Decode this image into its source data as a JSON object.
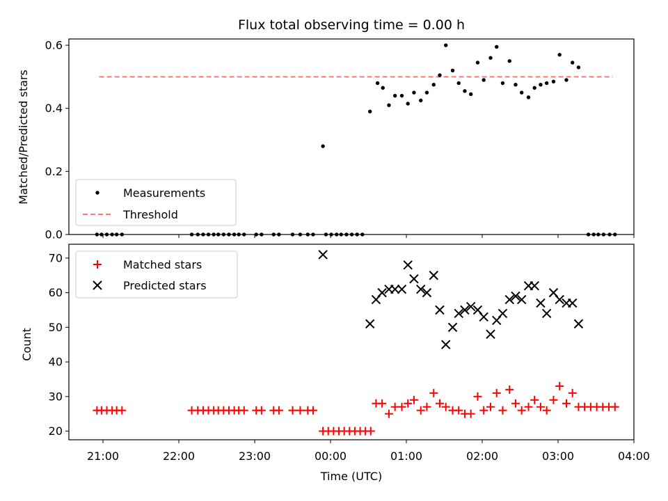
{
  "chart_data": [
    {
      "type": "scatter",
      "title": "Flux total observing time = 0.00 h",
      "xlabel": "",
      "ylabel": "Matched/Predicted stars",
      "ylim": [
        0.0,
        0.62
      ],
      "yticks": [
        "0.0",
        "0.2",
        "0.4",
        "0.6"
      ],
      "ytick_values": [
        0.0,
        0.2,
        0.4,
        0.6
      ],
      "legend_placement": "lower-left",
      "threshold": {
        "name": "Threshold",
        "value": 0.5,
        "color": "#ff7777",
        "style": "dashed"
      },
      "series": [
        {
          "name": "Measurements",
          "color": "#000000",
          "points": [
            [
              -0.08,
              0
            ],
            [
              -0.02,
              0
            ],
            [
              0.05,
              0
            ],
            [
              0.12,
              0
            ],
            [
              0.18,
              0
            ],
            [
              0.25,
              0
            ],
            [
              1.17,
              0
            ],
            [
              1.25,
              0
            ],
            [
              1.32,
              0
            ],
            [
              1.39,
              0
            ],
            [
              1.46,
              0
            ],
            [
              1.52,
              0
            ],
            [
              1.59,
              0
            ],
            [
              1.66,
              0
            ],
            [
              1.73,
              0
            ],
            [
              1.79,
              0
            ],
            [
              1.86,
              0
            ],
            [
              2.02,
              0
            ],
            [
              2.09,
              0
            ],
            [
              2.25,
              0
            ],
            [
              2.32,
              0
            ],
            [
              2.5,
              0
            ],
            [
              2.6,
              0
            ],
            [
              2.7,
              0
            ],
            [
              2.77,
              0
            ],
            [
              2.9,
              0.28
            ],
            [
              2.94,
              0
            ],
            [
              3.01,
              0
            ],
            [
              3.08,
              0
            ],
            [
              3.14,
              0
            ],
            [
              3.21,
              0
            ],
            [
              3.28,
              0
            ],
            [
              3.35,
              0
            ],
            [
              3.42,
              0
            ],
            [
              3.52,
              0.39
            ],
            [
              3.62,
              0.48
            ],
            [
              3.69,
              0.465
            ],
            [
              3.77,
              0.41
            ],
            [
              3.85,
              0.44
            ],
            [
              3.94,
              0.44
            ],
            [
              4.02,
              0.415
            ],
            [
              4.1,
              0.45
            ],
            [
              4.19,
              0.425
            ],
            [
              4.27,
              0.45
            ],
            [
              4.36,
              0.475
            ],
            [
              4.44,
              0.505
            ],
            [
              4.52,
              0.6
            ],
            [
              4.61,
              0.52
            ],
            [
              4.69,
              0.48
            ],
            [
              4.77,
              0.455
            ],
            [
              4.85,
              0.445
            ],
            [
              4.94,
              0.545
            ],
            [
              5.02,
              0.49
            ],
            [
              5.11,
              0.56
            ],
            [
              5.19,
              0.595
            ],
            [
              5.27,
              0.48
            ],
            [
              5.36,
              0.55
            ],
            [
              5.44,
              0.475
            ],
            [
              5.52,
              0.45
            ],
            [
              5.61,
              0.435
            ],
            [
              5.69,
              0.465
            ],
            [
              5.77,
              0.475
            ],
            [
              5.85,
              0.48
            ],
            [
              5.94,
              0.485
            ],
            [
              6.02,
              0.57
            ],
            [
              6.11,
              0.49
            ],
            [
              6.19,
              0.545
            ],
            [
              6.27,
              0.53
            ],
            [
              6.4,
              0
            ],
            [
              6.47,
              0
            ],
            [
              6.53,
              0
            ],
            [
              6.6,
              0
            ],
            [
              6.68,
              0
            ],
            [
              6.75,
              0
            ]
          ]
        }
      ]
    },
    {
      "type": "scatter",
      "title": "",
      "xlabel": "Time (UTC)",
      "ylabel": "Count",
      "ylim": [
        17.5,
        74
      ],
      "yticks": [
        "20",
        "30",
        "40",
        "50",
        "60",
        "70"
      ],
      "ytick_values": [
        20,
        30,
        40,
        50,
        60,
        70
      ],
      "xticks": [
        "21:00",
        "22:00",
        "23:00",
        "00:00",
        "01:00",
        "02:00",
        "03:00",
        "04:00"
      ],
      "xtick_values": [
        0,
        1,
        2,
        3,
        4,
        5,
        6,
        7
      ],
      "legend_placement": "upper-left",
      "series": [
        {
          "name": "Matched stars",
          "color": "#ff0000",
          "marker": "plus",
          "points": [
            [
              -0.08,
              26
            ],
            [
              -0.02,
              26
            ],
            [
              0.05,
              26
            ],
            [
              0.12,
              26
            ],
            [
              0.18,
              26
            ],
            [
              0.25,
              26
            ],
            [
              1.17,
              26
            ],
            [
              1.25,
              26
            ],
            [
              1.32,
              26
            ],
            [
              1.39,
              26
            ],
            [
              1.46,
              26
            ],
            [
              1.52,
              26
            ],
            [
              1.59,
              26
            ],
            [
              1.66,
              26
            ],
            [
              1.73,
              26
            ],
            [
              1.79,
              26
            ],
            [
              1.86,
              26
            ],
            [
              2.02,
              26
            ],
            [
              2.09,
              26
            ],
            [
              2.25,
              26
            ],
            [
              2.32,
              26
            ],
            [
              2.5,
              26
            ],
            [
              2.6,
              26
            ],
            [
              2.7,
              26
            ],
            [
              2.77,
              26
            ],
            [
              2.9,
              20
            ],
            [
              2.97,
              20
            ],
            [
              3.04,
              20
            ],
            [
              3.11,
              20
            ],
            [
              3.18,
              20
            ],
            [
              3.25,
              20
            ],
            [
              3.32,
              20
            ],
            [
              3.39,
              20
            ],
            [
              3.46,
              20
            ],
            [
              3.53,
              20
            ],
            [
              3.6,
              28
            ],
            [
              3.68,
              28
            ],
            [
              3.77,
              25
            ],
            [
              3.85,
              27
            ],
            [
              3.94,
              27
            ],
            [
              4.02,
              28
            ],
            [
              4.1,
              29
            ],
            [
              4.19,
              26
            ],
            [
              4.27,
              27
            ],
            [
              4.36,
              31
            ],
            [
              4.44,
              28
            ],
            [
              4.52,
              27
            ],
            [
              4.61,
              26
            ],
            [
              4.69,
              26
            ],
            [
              4.77,
              25
            ],
            [
              4.85,
              25
            ],
            [
              4.94,
              30
            ],
            [
              5.02,
              26
            ],
            [
              5.11,
              27
            ],
            [
              5.19,
              31
            ],
            [
              5.27,
              26
            ],
            [
              5.36,
              32
            ],
            [
              5.44,
              28
            ],
            [
              5.52,
              26
            ],
            [
              5.61,
              27
            ],
            [
              5.69,
              29
            ],
            [
              5.77,
              27
            ],
            [
              5.85,
              26
            ],
            [
              5.94,
              29
            ],
            [
              6.02,
              33
            ],
            [
              6.11,
              28
            ],
            [
              6.19,
              31
            ],
            [
              6.27,
              27
            ],
            [
              6.35,
              27
            ],
            [
              6.43,
              27
            ],
            [
              6.51,
              27
            ],
            [
              6.59,
              27
            ],
            [
              6.67,
              27
            ],
            [
              6.75,
              27
            ]
          ]
        },
        {
          "name": "Predicted stars",
          "color": "#000000",
          "marker": "x",
          "points": [
            [
              2.9,
              71
            ],
            [
              3.52,
              51
            ],
            [
              3.6,
              58
            ],
            [
              3.68,
              60
            ],
            [
              3.77,
              61
            ],
            [
              3.85,
              61
            ],
            [
              3.94,
              61
            ],
            [
              4.02,
              68
            ],
            [
              4.1,
              64
            ],
            [
              4.19,
              61
            ],
            [
              4.27,
              60
            ],
            [
              4.36,
              65
            ],
            [
              4.44,
              55
            ],
            [
              4.52,
              45
            ],
            [
              4.61,
              50
            ],
            [
              4.69,
              54
            ],
            [
              4.77,
              55
            ],
            [
              4.85,
              56
            ],
            [
              4.94,
              55
            ],
            [
              5.02,
              53
            ],
            [
              5.11,
              48
            ],
            [
              5.19,
              52
            ],
            [
              5.27,
              54
            ],
            [
              5.36,
              58
            ],
            [
              5.44,
              59
            ],
            [
              5.52,
              58
            ],
            [
              5.61,
              62
            ],
            [
              5.69,
              62
            ],
            [
              5.77,
              57
            ],
            [
              5.85,
              54
            ],
            [
              5.94,
              60
            ],
            [
              6.02,
              58
            ],
            [
              6.11,
              57
            ],
            [
              6.19,
              57
            ],
            [
              6.27,
              51
            ]
          ]
        }
      ]
    }
  ]
}
